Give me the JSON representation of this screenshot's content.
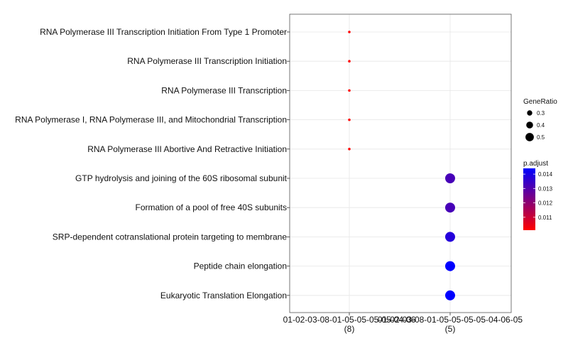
{
  "chart_data": {
    "type": "scatter",
    "title": "",
    "xlabel": "",
    "ylabel": "",
    "grid": true,
    "legend_placement": "right",
    "clusters": [
      {
        "label": "01-02-03-08-01-05-05-05-05-04-06",
        "count_label": "(8)"
      },
      {
        "label": "01-02-03-08-01-05-05-05-05-04-06-05",
        "count_label": "(5)"
      }
    ],
    "categories": [
      "RNA Polymerase III Transcription Initiation From Type 1 Promoter",
      "RNA Polymerase III Transcription Initiation",
      "RNA Polymerase III Transcription",
      "RNA Polymerase I, RNA Polymerase III, and Mitochondrial Transcription",
      "RNA Polymerase III Abortive And Retractive Initiation",
      "GTP hydrolysis and joining of the 60S ribosomal subunit",
      "Formation of a pool of free 40S subunits",
      "SRP-dependent cotranslational protein targeting to membrane",
      "Peptide chain elongation",
      "Eukaryotic Translation Elongation"
    ],
    "points": [
      {
        "term": "RNA Polymerase III Transcription Initiation From Type 1 Promoter",
        "cluster": 0,
        "gene_ratio": 0.125,
        "p_adjust": 0.0101
      },
      {
        "term": "RNA Polymerase III Transcription Initiation",
        "cluster": 0,
        "gene_ratio": 0.125,
        "p_adjust": 0.0101
      },
      {
        "term": "RNA Polymerase III Transcription",
        "cluster": 0,
        "gene_ratio": 0.125,
        "p_adjust": 0.0101
      },
      {
        "term": "RNA Polymerase I, RNA Polymerase III, and Mitochondrial Transcription",
        "cluster": 0,
        "gene_ratio": 0.125,
        "p_adjust": 0.0101
      },
      {
        "term": "RNA Polymerase III Abortive And Retractive Initiation",
        "cluster": 0,
        "gene_ratio": 0.125,
        "p_adjust": 0.0101
      },
      {
        "term": "GTP hydrolysis and joining of the 60S ribosomal subunit",
        "cluster": 1,
        "gene_ratio": 0.6,
        "p_adjust": 0.0132
      },
      {
        "term": "Formation of a pool of free 40S subunits",
        "cluster": 1,
        "gene_ratio": 0.6,
        "p_adjust": 0.0132
      },
      {
        "term": "SRP-dependent cotranslational protein targeting to membrane",
        "cluster": 1,
        "gene_ratio": 0.6,
        "p_adjust": 0.0138
      },
      {
        "term": "Peptide chain elongation",
        "cluster": 1,
        "gene_ratio": 0.6,
        "p_adjust": 0.0144
      },
      {
        "term": "Eukaryotic Translation Elongation",
        "cluster": 1,
        "gene_ratio": 0.6,
        "p_adjust": 0.0144
      }
    ],
    "size_legend": {
      "title": "GeneRatio",
      "breaks": [
        0.3,
        0.4,
        0.5
      ],
      "labels": [
        "0.3",
        "0.4",
        "0.5"
      ]
    },
    "color_legend": {
      "title": "p.adjust",
      "low_color": "#ff0000",
      "high_color": "#0000ff",
      "range": [
        0.0101,
        0.0144
      ],
      "breaks": [
        0.011,
        0.012,
        0.013,
        0.014
      ],
      "labels": [
        "0.011",
        "0.012",
        "0.013",
        "0.014"
      ]
    }
  }
}
